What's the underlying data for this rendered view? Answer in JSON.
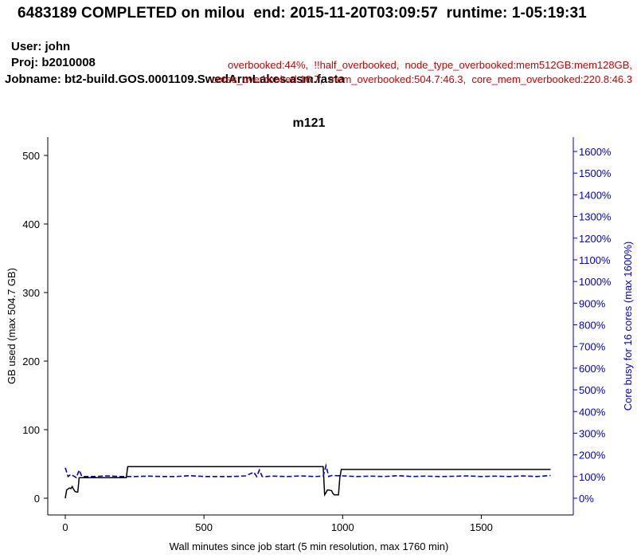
{
  "header": {
    "title": "6483189 COMPLETED on milou  end: 2015-11-20T03:09:57  runtime: 1-05:19:31",
    "user": "User: john",
    "proj": "Proj: b2010008",
    "jobname": "Jobname: bt2-build.GOS.0001109.SwedArmLakes.asm.fasta",
    "flags_line1": "overbooked:44%,  !!half_overbooked,  node_type_overbooked:mem512GB:mem128GB,",
    "flags_line2": "cores_overbooked:16:7,  mem_overbooked:504.7:46.3,  core_mem_overbooked:220.8:46.3"
  },
  "colors": {
    "memory": "#000000",
    "cores": "#0000cc",
    "flags": "#cc0000",
    "axis_right": "#0000cc"
  },
  "chart_data": {
    "type": "line",
    "title": "m121",
    "xlabel": "Wall minutes since job start (5 min resolution, max 1760 min)",
    "ylabel_left": "GB used (max 504.7 GB)",
    "ylabel_right": "Core busy for 16 cores (max 1600%)",
    "xlim": [
      0,
      1760
    ],
    "ylim_left": [
      0,
      504.7
    ],
    "ylim_right": [
      0,
      1600
    ],
    "x_ticks": [
      0,
      500,
      1000,
      1500
    ],
    "y_left_ticks": [
      0,
      100,
      200,
      300,
      400,
      500
    ],
    "y_right_ticks": [
      "0%",
      "100%",
      "200%",
      "300%",
      "400%",
      "500%",
      "600%",
      "700%",
      "800%",
      "900%",
      "1000%",
      "1100%",
      "1200%",
      "1300%",
      "1400%",
      "1500%",
      "1600%"
    ],
    "grid": false,
    "series": [
      {
        "name": "",
        "axis": "left",
        "style": "solid",
        "x": [
          0,
          5,
          15,
          20,
          25,
          30,
          35,
          40,
          45,
          50,
          220,
          225,
          930,
          935,
          940,
          945,
          950,
          960,
          965,
          970,
          985,
          990,
          995,
          1750
        ],
        "y": [
          0,
          12,
          15,
          14,
          17,
          13,
          10,
          9,
          9,
          30,
          30,
          46,
          46,
          5,
          8,
          12,
          12,
          11,
          7,
          5,
          5,
          30,
          42,
          42
        ]
      },
      {
        "name": "",
        "axis": "right",
        "style": "dashed",
        "x": [
          0,
          10,
          20,
          40,
          50,
          60,
          100,
          150,
          200,
          250,
          300,
          350,
          400,
          450,
          500,
          550,
          600,
          650,
          680,
          690,
          700,
          710,
          720,
          750,
          800,
          850,
          900,
          930,
          940,
          950,
          960,
          1000,
          1050,
          1100,
          1150,
          1200,
          1250,
          1300,
          1350,
          1400,
          1450,
          1500,
          1550,
          1600,
          1650,
          1700,
          1750
        ],
        "y": [
          140,
          100,
          110,
          95,
          130,
          100,
          100,
          103,
          100,
          100,
          102,
          100,
          100,
          104,
          100,
          100,
          100,
          103,
          120,
          100,
          130,
          100,
          100,
          102,
          100,
          103,
          100,
          102,
          150,
          100,
          105,
          103,
          100,
          102,
          100,
          104,
          100,
          102,
          100,
          101,
          103,
          100,
          102,
          100,
          103,
          100,
          105
        ]
      }
    ]
  }
}
